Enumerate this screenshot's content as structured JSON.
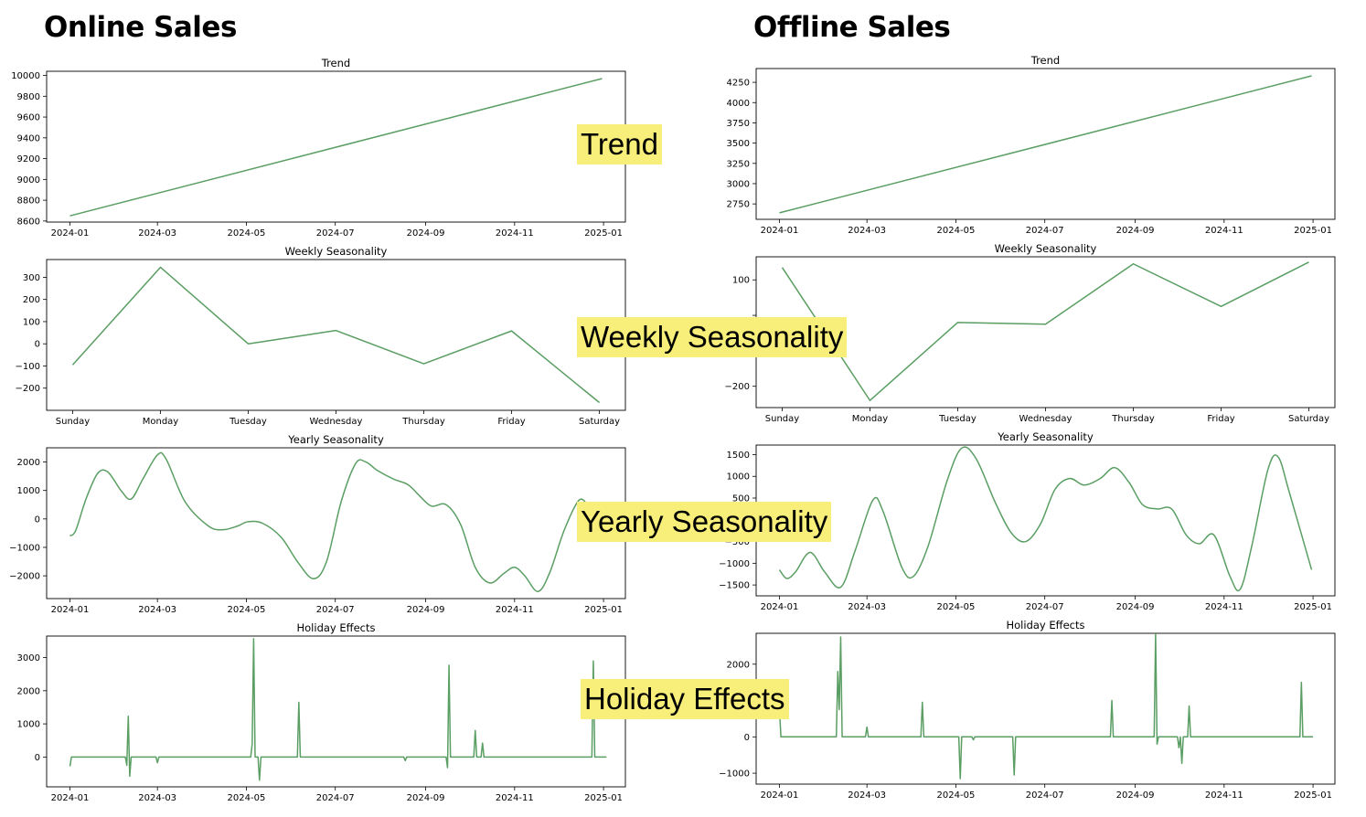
{
  "headers": {
    "online": "Online Sales",
    "offline": "Offline Sales"
  },
  "callouts": {
    "trend": "Trend",
    "weekly": "Weekly Seasonality",
    "yearly": "Yearly Seasonality",
    "holiday": "Holiday Effects"
  },
  "colors": {
    "line": "#5a9e63",
    "callout_bg": "#f8ef7a"
  },
  "chart_data": [
    {
      "id": "online-trend",
      "group": "Online Sales",
      "type": "line",
      "title": "Trend",
      "xlabel": "",
      "ylabel": "",
      "x_axis": "date",
      "xlim": [
        "2023-12-16",
        "2025-01-16"
      ],
      "xticks": [
        "2024-01",
        "2024-03",
        "2024-05",
        "2024-07",
        "2024-09",
        "2024-11",
        "2025-01"
      ],
      "ylim": [
        8590,
        10040
      ],
      "yticks": [
        8600,
        8800,
        9000,
        9200,
        9400,
        9600,
        9800,
        10000
      ],
      "series": [
        {
          "points": [
            [
              "2024-01-01",
              8650
            ],
            [
              "2024-12-31",
              9970
            ]
          ]
        }
      ]
    },
    {
      "id": "online-weekly",
      "group": "Online Sales",
      "type": "line",
      "title": "Weekly Seasonality",
      "xlabel": "",
      "ylabel": "",
      "x_axis": "category",
      "categories": [
        "Sunday",
        "Monday",
        "Tuesday",
        "Wednesday",
        "Thursday",
        "Friday",
        "Saturday"
      ],
      "ylim": [
        -300,
        380
      ],
      "yticks": [
        -200,
        -100,
        0,
        100,
        200,
        300
      ],
      "series": [
        {
          "values": [
            -95,
            345,
            0,
            60,
            -90,
            58,
            -265
          ]
        }
      ]
    },
    {
      "id": "online-yearly",
      "group": "Online Sales",
      "type": "line",
      "title": "Yearly Seasonality",
      "xlabel": "",
      "ylabel": "",
      "x_axis": "date",
      "xlim": [
        "2023-12-16",
        "2025-01-16"
      ],
      "xticks": [
        "2024-01",
        "2024-03",
        "2024-05",
        "2024-07",
        "2024-09",
        "2024-11",
        "2025-01"
      ],
      "ylim": [
        -2800,
        2500
      ],
      "yticks": [
        -2000,
        -1000,
        0,
        1000,
        2000
      ],
      "series": [
        {
          "smooth": true,
          "points": [
            [
              "2024-01-01",
              -600
            ],
            [
              "2024-01-05",
              -400
            ],
            [
              "2024-01-12",
              700
            ],
            [
              "2024-01-20",
              1600
            ],
            [
              "2024-01-27",
              1650
            ],
            [
              "2024-02-05",
              1000
            ],
            [
              "2024-02-12",
              700
            ],
            [
              "2024-02-20",
              1400
            ],
            [
              "2024-03-01",
              2250
            ],
            [
              "2024-03-07",
              2100
            ],
            [
              "2024-03-20",
              600
            ],
            [
              "2024-04-05",
              -250
            ],
            [
              "2024-04-15",
              -380
            ],
            [
              "2024-04-25",
              -250
            ],
            [
              "2024-05-02",
              -100
            ],
            [
              "2024-05-12",
              -150
            ],
            [
              "2024-05-25",
              -650
            ],
            [
              "2024-06-05",
              -1500
            ],
            [
              "2024-06-16",
              -2100
            ],
            [
              "2024-06-25",
              -1500
            ],
            [
              "2024-07-05",
              600
            ],
            [
              "2024-07-15",
              1950
            ],
            [
              "2024-07-22",
              2000
            ],
            [
              "2024-07-30",
              1700
            ],
            [
              "2024-08-10",
              1400
            ],
            [
              "2024-08-20",
              1200
            ],
            [
              "2024-08-28",
              800
            ],
            [
              "2024-09-05",
              450
            ],
            [
              "2024-09-15",
              500
            ],
            [
              "2024-09-25",
              -200
            ],
            [
              "2024-10-05",
              -1700
            ],
            [
              "2024-10-15",
              -2250
            ],
            [
              "2024-10-25",
              -1900
            ],
            [
              "2024-11-01",
              -1700
            ],
            [
              "2024-11-08",
              -2000
            ],
            [
              "2024-11-17",
              -2550
            ],
            [
              "2024-11-25",
              -1900
            ],
            [
              "2024-12-05",
              -400
            ],
            [
              "2024-12-15",
              650
            ],
            [
              "2024-12-21",
              500
            ]
          ]
        }
      ]
    },
    {
      "id": "online-holiday",
      "group": "Online Sales",
      "type": "line",
      "title": "Holiday Effects",
      "xlabel": "",
      "ylabel": "",
      "x_axis": "date",
      "xlim": [
        "2023-12-16",
        "2025-01-16"
      ],
      "xticks": [
        "2024-01",
        "2024-03",
        "2024-05",
        "2024-07",
        "2024-09",
        "2024-11",
        "2025-01"
      ],
      "ylim": [
        -900,
        3650
      ],
      "yticks": [
        0,
        1000,
        2000,
        3000
      ],
      "series": [
        {
          "points": [
            [
              "2024-01-01",
              -280
            ],
            [
              "2024-01-02",
              0
            ],
            [
              "2024-02-08",
              0
            ],
            [
              "2024-02-09",
              -250
            ],
            [
              "2024-02-10",
              1230
            ],
            [
              "2024-02-11",
              -580
            ],
            [
              "2024-02-12",
              0
            ],
            [
              "2024-02-29",
              0
            ],
            [
              "2024-03-01",
              -170
            ],
            [
              "2024-03-02",
              0
            ],
            [
              "2024-05-04",
              0
            ],
            [
              "2024-05-05",
              400
            ],
            [
              "2024-05-06",
              3570
            ],
            [
              "2024-05-07",
              0
            ],
            [
              "2024-05-09",
              0
            ],
            [
              "2024-05-10",
              -700
            ],
            [
              "2024-05-11",
              0
            ],
            [
              "2024-06-05",
              0
            ],
            [
              "2024-06-06",
              1650
            ],
            [
              "2024-06-07",
              0
            ],
            [
              "2024-08-17",
              0
            ],
            [
              "2024-08-18",
              -110
            ],
            [
              "2024-08-19",
              0
            ],
            [
              "2024-09-15",
              0
            ],
            [
              "2024-09-16",
              -320
            ],
            [
              "2024-09-17",
              2770
            ],
            [
              "2024-09-18",
              0
            ],
            [
              "2024-10-04",
              0
            ],
            [
              "2024-10-05",
              800
            ],
            [
              "2024-10-06",
              0
            ],
            [
              "2024-10-09",
              0
            ],
            [
              "2024-10-10",
              420
            ],
            [
              "2024-10-11",
              0
            ],
            [
              "2024-12-24",
              0
            ],
            [
              "2024-12-25",
              2900
            ],
            [
              "2024-12-26",
              0
            ],
            [
              "2025-01-03",
              0
            ]
          ]
        }
      ]
    },
    {
      "id": "offline-trend",
      "group": "Offline Sales",
      "type": "line",
      "title": "Trend",
      "xlabel": "",
      "ylabel": "",
      "x_axis": "date",
      "xlim": [
        "2023-12-16",
        "2025-01-16"
      ],
      "xticks": [
        "2024-01",
        "2024-03",
        "2024-05",
        "2024-07",
        "2024-09",
        "2024-11",
        "2025-01"
      ],
      "ylim": [
        2560,
        4420
      ],
      "yticks": [
        2750,
        3000,
        3250,
        3500,
        3750,
        4000,
        4250
      ],
      "series": [
        {
          "points": [
            [
              "2024-01-01",
              2640
            ],
            [
              "2024-12-31",
              4330
            ]
          ]
        }
      ]
    },
    {
      "id": "offline-weekly",
      "group": "Offline Sales",
      "type": "line",
      "title": "Weekly Seasonality",
      "xlabel": "",
      "ylabel": "",
      "x_axis": "category",
      "categories": [
        "Sunday",
        "Monday",
        "Tuesday",
        "Wednesday",
        "Thursday",
        "Friday",
        "Saturday"
      ],
      "ylim": [
        -260,
        165
      ],
      "yticks": [
        -200,
        -100,
        0,
        100
      ],
      "ytick_labels": [
        "−200",
        "",
        "",
        "100"
      ],
      "series": [
        {
          "values": [
            135,
            -240,
            -20,
            -25,
            145,
            25,
            150
          ]
        }
      ]
    },
    {
      "id": "offline-yearly",
      "group": "Offline Sales",
      "type": "line",
      "title": "Yearly Seasonality",
      "xlabel": "",
      "ylabel": "",
      "x_axis": "date",
      "xlim": [
        "2023-12-16",
        "2025-01-16"
      ],
      "xticks": [
        "2024-01",
        "2024-03",
        "2024-05",
        "2024-07",
        "2024-09",
        "2024-11",
        "2025-01"
      ],
      "ylim": [
        -1750,
        1720
      ],
      "yticks": [
        -1500,
        -1000,
        -500,
        0,
        500,
        1000,
        1500
      ],
      "ytick_labels": [
        "−1500",
        "−1000",
        "−500",
        "",
        "500",
        "1000",
        "1500"
      ],
      "series": [
        {
          "smooth": true,
          "points": [
            [
              "2024-01-01",
              -1150
            ],
            [
              "2024-01-06",
              -1350
            ],
            [
              "2024-01-12",
              -1200
            ],
            [
              "2024-01-22",
              -750
            ],
            [
              "2024-02-01",
              -1200
            ],
            [
              "2024-02-12",
              -1550
            ],
            [
              "2024-02-22",
              -700
            ],
            [
              "2024-03-05",
              450
            ],
            [
              "2024-03-12",
              200
            ],
            [
              "2024-03-25",
              -1100
            ],
            [
              "2024-04-02",
              -1300
            ],
            [
              "2024-04-12",
              -600
            ],
            [
              "2024-04-25",
              900
            ],
            [
              "2024-05-05",
              1650
            ],
            [
              "2024-05-15",
              1400
            ],
            [
              "2024-05-28",
              400
            ],
            [
              "2024-06-08",
              -300
            ],
            [
              "2024-06-18",
              -500
            ],
            [
              "2024-06-28",
              -100
            ],
            [
              "2024-07-08",
              700
            ],
            [
              "2024-07-18",
              950
            ],
            [
              "2024-07-28",
              800
            ],
            [
              "2024-08-08",
              950
            ],
            [
              "2024-08-18",
              1200
            ],
            [
              "2024-08-28",
              850
            ],
            [
              "2024-09-06",
              350
            ],
            [
              "2024-09-16",
              250
            ],
            [
              "2024-09-26",
              250
            ],
            [
              "2024-10-06",
              -350
            ],
            [
              "2024-10-15",
              -550
            ],
            [
              "2024-10-25",
              -350
            ],
            [
              "2024-11-05",
              -1300
            ],
            [
              "2024-11-12",
              -1600
            ],
            [
              "2024-11-20",
              -600
            ],
            [
              "2024-12-01",
              1150
            ],
            [
              "2024-12-08",
              1450
            ],
            [
              "2024-12-16",
              600
            ],
            [
              "2024-12-31",
              -1150
            ]
          ]
        }
      ]
    },
    {
      "id": "offline-holiday",
      "group": "Offline Sales",
      "type": "line",
      "title": "Holiday Effects",
      "xlabel": "",
      "ylabel": "",
      "x_axis": "date",
      "xlim": [
        "2023-12-16",
        "2025-01-16"
      ],
      "xticks": [
        "2024-01",
        "2024-03",
        "2024-05",
        "2024-07",
        "2024-09",
        "2024-11",
        "2025-01"
      ],
      "ylim": [
        -1300,
        2850
      ],
      "yticks": [
        -1000,
        0,
        1000,
        2000
      ],
      "series": [
        {
          "points": [
            [
              "2023-12-31",
              1500
            ],
            [
              "2024-01-02",
              0
            ],
            [
              "2024-02-09",
              0
            ],
            [
              "2024-02-10",
              1800
            ],
            [
              "2024-02-11",
              750
            ],
            [
              "2024-02-12",
              2750
            ],
            [
              "2024-02-13",
              0
            ],
            [
              "2024-02-29",
              0
            ],
            [
              "2024-03-01",
              270
            ],
            [
              "2024-03-02",
              0
            ],
            [
              "2024-04-07",
              0
            ],
            [
              "2024-04-08",
              950
            ],
            [
              "2024-04-09",
              0
            ],
            [
              "2024-05-03",
              0
            ],
            [
              "2024-05-04",
              -1150
            ],
            [
              "2024-05-05",
              0
            ],
            [
              "2024-05-12",
              0
            ],
            [
              "2024-05-13",
              -80
            ],
            [
              "2024-05-14",
              0
            ],
            [
              "2024-06-09",
              0
            ],
            [
              "2024-06-10",
              -1050
            ],
            [
              "2024-06-11",
              0
            ],
            [
              "2024-08-15",
              0
            ],
            [
              "2024-08-16",
              1000
            ],
            [
              "2024-08-17",
              0
            ],
            [
              "2024-09-14",
              0
            ],
            [
              "2024-09-15",
              2830
            ],
            [
              "2024-09-16",
              -200
            ],
            [
              "2024-09-17",
              0
            ],
            [
              "2024-09-30",
              0
            ],
            [
              "2024-10-01",
              -300
            ],
            [
              "2024-10-02",
              0
            ],
            [
              "2024-10-03",
              -730
            ],
            [
              "2024-10-04",
              0
            ],
            [
              "2024-10-07",
              0
            ],
            [
              "2024-10-08",
              850
            ],
            [
              "2024-10-09",
              0
            ],
            [
              "2024-12-23",
              0
            ],
            [
              "2024-12-24",
              1500
            ],
            [
              "2024-12-25",
              0
            ],
            [
              "2025-01-01",
              0
            ]
          ]
        }
      ]
    }
  ]
}
